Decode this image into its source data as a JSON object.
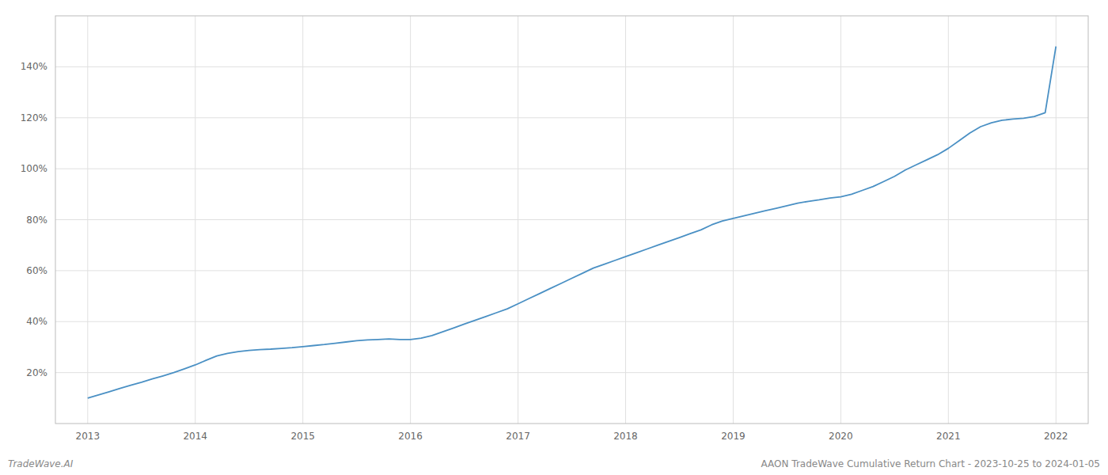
{
  "chart_data": {
    "type": "line",
    "title": "AAON TradeWave Cumulative Return Chart - 2023-10-25 to 2024-01-05",
    "annotations": [
      "TradeWave.AI"
    ],
    "color": "#4a90c4",
    "grid": true,
    "xlim": [
      2012.7,
      2022.3
    ],
    "xticks": [
      2013,
      2014,
      2015,
      2016,
      2017,
      2018,
      2019,
      2020,
      2021,
      2022
    ],
    "ylim": [
      0,
      160
    ],
    "yticks": [
      {
        "value": 20,
        "label": "20%"
      },
      {
        "value": 40,
        "label": "40%"
      },
      {
        "value": 60,
        "label": "60%"
      },
      {
        "value": 80,
        "label": "80%"
      },
      {
        "value": 100,
        "label": "100%"
      },
      {
        "value": 120,
        "label": "120%"
      },
      {
        "value": 140,
        "label": "140%"
      }
    ],
    "x": [
      2013.0,
      2013.1,
      2013.2,
      2013.3,
      2013.4,
      2013.5,
      2013.6,
      2013.7,
      2013.8,
      2013.9,
      2014.0,
      2014.1,
      2014.2,
      2014.3,
      2014.4,
      2014.5,
      2014.6,
      2014.7,
      2014.8,
      2014.9,
      2015.0,
      2015.1,
      2015.2,
      2015.3,
      2015.4,
      2015.5,
      2015.6,
      2015.7,
      2015.8,
      2015.9,
      2016.0,
      2016.1,
      2016.2,
      2016.3,
      2016.4,
      2016.5,
      2016.6,
      2016.7,
      2016.8,
      2016.9,
      2017.0,
      2017.1,
      2017.2,
      2017.3,
      2017.4,
      2017.5,
      2017.6,
      2017.7,
      2017.8,
      2017.9,
      2018.0,
      2018.1,
      2018.2,
      2018.3,
      2018.4,
      2018.5,
      2018.6,
      2018.7,
      2018.8,
      2018.9,
      2019.0,
      2019.1,
      2019.2,
      2019.3,
      2019.4,
      2019.5,
      2019.6,
      2019.7,
      2019.8,
      2019.9,
      2020.0,
      2020.1,
      2020.2,
      2020.3,
      2020.4,
      2020.5,
      2020.6,
      2020.7,
      2020.8,
      2020.9,
      2021.0,
      2021.1,
      2021.2,
      2021.3,
      2021.4,
      2021.5,
      2021.6,
      2021.7,
      2021.8,
      2021.9,
      2022.0
    ],
    "values": [
      10.0,
      11.2,
      12.5,
      13.8,
      15.0,
      16.2,
      17.5,
      18.7,
      20.0,
      21.5,
      23.0,
      24.8,
      26.5,
      27.5,
      28.2,
      28.7,
      29.0,
      29.2,
      29.5,
      29.8,
      30.2,
      30.6,
      31.0,
      31.5,
      32.0,
      32.5,
      32.8,
      33.0,
      33.2,
      33.0,
      33.0,
      33.5,
      34.5,
      36.0,
      37.5,
      39.0,
      40.5,
      42.0,
      43.5,
      45.0,
      47.0,
      49.0,
      51.0,
      53.0,
      55.0,
      57.0,
      59.0,
      61.0,
      62.5,
      64.0,
      65.5,
      67.0,
      68.5,
      70.0,
      71.5,
      73.0,
      74.5,
      76.0,
      78.0,
      79.5,
      80.5,
      81.5,
      82.5,
      83.5,
      84.5,
      85.5,
      86.5,
      87.2,
      87.8,
      88.5,
      89.0,
      90.0,
      91.5,
      93.0,
      95.0,
      97.0,
      99.5,
      101.5,
      103.5,
      105.5,
      108.0,
      111.0,
      114.0,
      116.5,
      118.0,
      119.0,
      119.5,
      119.8,
      120.5,
      122.0,
      148.0
    ]
  }
}
